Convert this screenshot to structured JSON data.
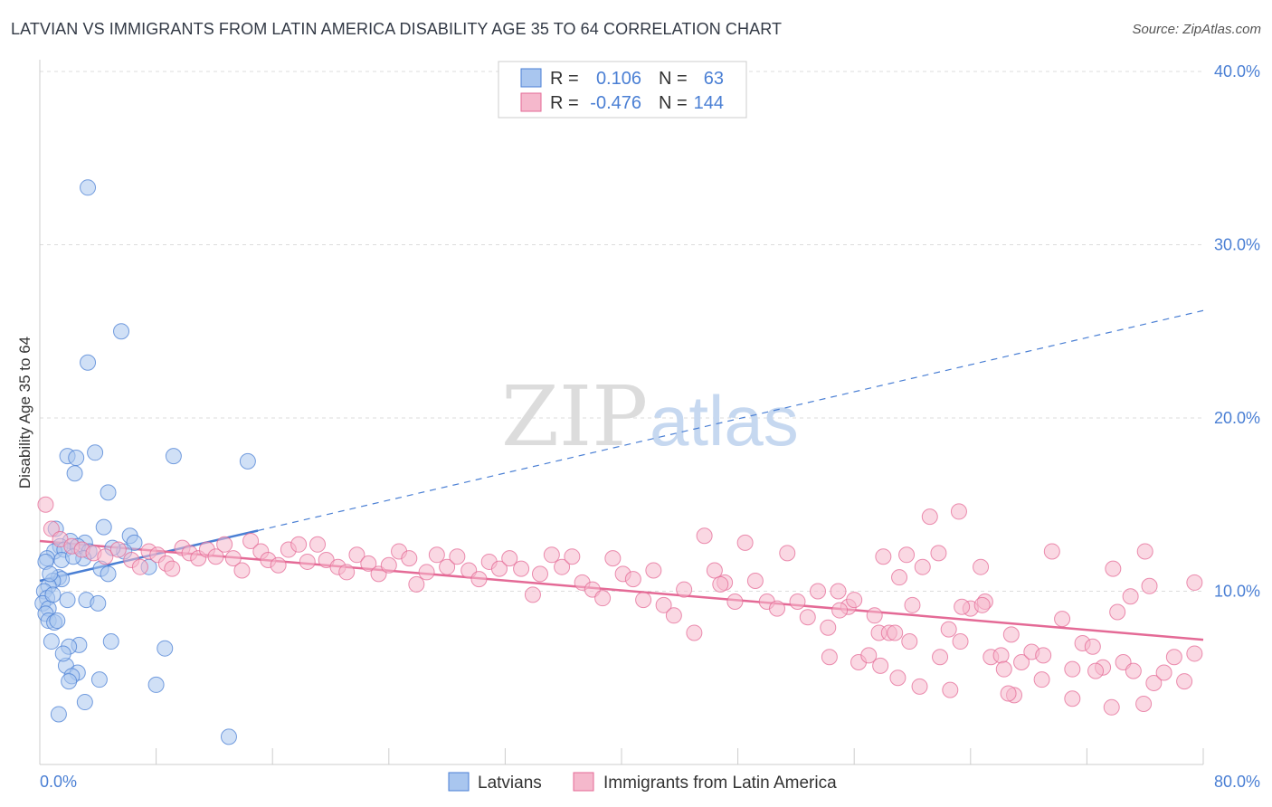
{
  "title": "LATVIAN VS IMMIGRANTS FROM LATIN AMERICA DISABILITY AGE 35 TO 64 CORRELATION CHART",
  "source": "Source: ZipAtlas.com",
  "watermark": {
    "zip": "ZIP",
    "atlas": "atlas"
  },
  "colors": {
    "blue": "#4a7fd4",
    "blue_fill": "#a9c6ef",
    "pink": "#e46a96",
    "pink_fill": "#f5b8cc",
    "grid": "#dddddd"
  },
  "stats": {
    "series1": {
      "r_label": "R =",
      "r_value": "0.106",
      "n_label": "N =",
      "n_value": "63"
    },
    "series2": {
      "r_label": "R =",
      "r_value": "-0.476",
      "n_label": "N =",
      "n_value": "144"
    }
  },
  "chart_data": {
    "type": "scatter",
    "title": "LATVIAN VS IMMIGRANTS FROM LATIN AMERICA DISABILITY AGE 35 TO 64 CORRELATION CHART",
    "xlabel": "",
    "ylabel": "Disability Age 35 to 64",
    "xlim": [
      0,
      80
    ],
    "ylim": [
      0,
      40
    ],
    "x_tick_labels": [
      "0.0%",
      "80.0%"
    ],
    "y_ticks": [
      10,
      20,
      30,
      40
    ],
    "y_tick_labels": [
      "10.0%",
      "20.0%",
      "30.0%",
      "40.0%"
    ],
    "grid": true,
    "legend_position": "bottom-center",
    "series": [
      {
        "name": "Latvians",
        "color": "#4a7fd4",
        "trend": {
          "x0": 0,
          "y0": 10.6,
          "x1": 15,
          "y1": 13.5,
          "dashed_to_x": 80,
          "dashed_to_y": 26.2
        },
        "points": [
          [
            3.3,
            33.3
          ],
          [
            5.6,
            25.0
          ],
          [
            3.3,
            23.2
          ],
          [
            1.9,
            17.8
          ],
          [
            2.5,
            17.7
          ],
          [
            3.8,
            18.0
          ],
          [
            9.2,
            17.8
          ],
          [
            14.3,
            17.5
          ],
          [
            2.4,
            16.8
          ],
          [
            4.7,
            15.7
          ],
          [
            1.1,
            13.6
          ],
          [
            4.4,
            13.7
          ],
          [
            6.2,
            13.2
          ],
          [
            2.1,
            12.9
          ],
          [
            3.1,
            12.8
          ],
          [
            6.5,
            12.8
          ],
          [
            1.4,
            12.6
          ],
          [
            1.0,
            12.3
          ],
          [
            1.7,
            12.4
          ],
          [
            2.6,
            12.6
          ],
          [
            3.4,
            12.3
          ],
          [
            5.8,
            12.3
          ],
          [
            0.5,
            11.9
          ],
          [
            0.4,
            11.7
          ],
          [
            1.5,
            11.8
          ],
          [
            3.0,
            11.9
          ],
          [
            4.2,
            11.3
          ],
          [
            4.7,
            11.0
          ],
          [
            7.5,
            11.4
          ],
          [
            1.3,
            10.8
          ],
          [
            1.5,
            10.7
          ],
          [
            0.9,
            10.6
          ],
          [
            0.6,
            10.3
          ],
          [
            0.3,
            10.0
          ],
          [
            0.5,
            9.6
          ],
          [
            1.9,
            9.5
          ],
          [
            3.2,
            9.5
          ],
          [
            4.0,
            9.3
          ],
          [
            0.2,
            9.3
          ],
          [
            0.6,
            9.0
          ],
          [
            0.4,
            8.7
          ],
          [
            0.6,
            8.3
          ],
          [
            1.0,
            8.2
          ],
          [
            1.2,
            8.3
          ],
          [
            0.8,
            7.1
          ],
          [
            4.9,
            7.1
          ],
          [
            2.7,
            6.9
          ],
          [
            2.0,
            6.8
          ],
          [
            8.6,
            6.7
          ],
          [
            1.8,
            5.7
          ],
          [
            2.6,
            5.3
          ],
          [
            2.2,
            5.1
          ],
          [
            2.0,
            4.8
          ],
          [
            4.1,
            4.9
          ],
          [
            8.0,
            4.6
          ],
          [
            3.1,
            3.6
          ],
          [
            1.3,
            2.9
          ],
          [
            13.0,
            1.6
          ],
          [
            1.6,
            6.4
          ],
          [
            0.7,
            11.0
          ],
          [
            5.0,
            12.5
          ],
          [
            2.3,
            12.0
          ],
          [
            0.9,
            9.8
          ]
        ]
      },
      {
        "name": "Immigrants from Latin America",
        "color": "#e46a96",
        "trend": {
          "x0": 0,
          "y0": 12.9,
          "x1": 80,
          "y1": 7.2
        },
        "points": [
          [
            0.4,
            15.0
          ],
          [
            0.8,
            13.6
          ],
          [
            1.4,
            13.0
          ],
          [
            2.2,
            12.6
          ],
          [
            2.9,
            12.4
          ],
          [
            3.7,
            12.2
          ],
          [
            4.5,
            12.0
          ],
          [
            5.4,
            12.4
          ],
          [
            6.3,
            11.8
          ],
          [
            6.9,
            11.4
          ],
          [
            7.5,
            12.3
          ],
          [
            8.1,
            12.1
          ],
          [
            8.7,
            11.6
          ],
          [
            9.1,
            11.3
          ],
          [
            9.8,
            12.5
          ],
          [
            10.3,
            12.2
          ],
          [
            10.9,
            11.9
          ],
          [
            11.5,
            12.4
          ],
          [
            12.1,
            12.0
          ],
          [
            12.7,
            12.7
          ],
          [
            13.3,
            11.9
          ],
          [
            13.9,
            11.2
          ],
          [
            14.5,
            12.9
          ],
          [
            15.2,
            12.3
          ],
          [
            15.7,
            11.8
          ],
          [
            16.4,
            11.5
          ],
          [
            17.1,
            12.4
          ],
          [
            17.8,
            12.7
          ],
          [
            18.4,
            11.7
          ],
          [
            19.1,
            12.7
          ],
          [
            19.7,
            11.8
          ],
          [
            20.5,
            11.4
          ],
          [
            21.1,
            11.1
          ],
          [
            21.8,
            12.1
          ],
          [
            22.6,
            11.6
          ],
          [
            23.3,
            11.0
          ],
          [
            24.0,
            11.5
          ],
          [
            24.7,
            12.3
          ],
          [
            25.4,
            11.9
          ],
          [
            25.9,
            10.4
          ],
          [
            26.6,
            11.1
          ],
          [
            27.3,
            12.1
          ],
          [
            28.0,
            11.4
          ],
          [
            28.7,
            12.0
          ],
          [
            29.5,
            11.2
          ],
          [
            30.2,
            10.7
          ],
          [
            30.9,
            11.7
          ],
          [
            31.6,
            11.3
          ],
          [
            32.3,
            11.9
          ],
          [
            33.1,
            11.3
          ],
          [
            33.9,
            9.8
          ],
          [
            34.4,
            11.0
          ],
          [
            35.2,
            12.1
          ],
          [
            35.9,
            11.4
          ],
          [
            36.6,
            12.0
          ],
          [
            37.3,
            10.5
          ],
          [
            38.0,
            10.1
          ],
          [
            38.7,
            9.6
          ],
          [
            39.4,
            11.9
          ],
          [
            40.1,
            11.0
          ],
          [
            40.8,
            10.7
          ],
          [
            41.5,
            9.5
          ],
          [
            42.2,
            11.2
          ],
          [
            42.9,
            9.2
          ],
          [
            43.6,
            8.6
          ],
          [
            44.3,
            10.1
          ],
          [
            45.0,
            7.6
          ],
          [
            45.7,
            13.2
          ],
          [
            46.4,
            11.2
          ],
          [
            47.1,
            10.5
          ],
          [
            47.8,
            9.4
          ],
          [
            48.5,
            12.8
          ],
          [
            49.2,
            10.6
          ],
          [
            50.0,
            9.4
          ],
          [
            50.7,
            9.0
          ],
          [
            51.4,
            12.2
          ],
          [
            52.1,
            9.4
          ],
          [
            52.8,
            8.5
          ],
          [
            53.5,
            10.0
          ],
          [
            54.2,
            7.9
          ],
          [
            54.9,
            10.0
          ],
          [
            55.6,
            9.1
          ],
          [
            56.3,
            5.9
          ],
          [
            57.0,
            6.3
          ],
          [
            57.7,
            7.6
          ],
          [
            58.4,
            7.6
          ],
          [
            59.1,
            10.8
          ],
          [
            59.8,
            7.1
          ],
          [
            60.5,
            4.5
          ],
          [
            61.2,
            14.3
          ],
          [
            61.9,
            6.2
          ],
          [
            62.6,
            4.3
          ],
          [
            63.3,
            7.1
          ],
          [
            64.0,
            9.0
          ],
          [
            64.7,
            11.4
          ],
          [
            65.4,
            6.2
          ],
          [
            66.1,
            6.3
          ],
          [
            66.8,
            7.5
          ],
          [
            67.5,
            5.9
          ],
          [
            68.2,
            6.5
          ],
          [
            68.9,
            4.9
          ],
          [
            69.6,
            12.3
          ],
          [
            70.3,
            8.4
          ],
          [
            71.0,
            5.5
          ],
          [
            71.7,
            7.0
          ],
          [
            72.4,
            6.8
          ],
          [
            73.1,
            5.6
          ],
          [
            73.8,
            11.3
          ],
          [
            74.5,
            5.9
          ],
          [
            75.2,
            5.4
          ],
          [
            75.9,
            3.5
          ],
          [
            76.6,
            4.7
          ],
          [
            77.3,
            5.3
          ],
          [
            78.0,
            6.2
          ],
          [
            78.7,
            4.8
          ],
          [
            79.4,
            6.4
          ],
          [
            63.4,
            9.1
          ],
          [
            65.0,
            9.4
          ],
          [
            56.0,
            9.5
          ],
          [
            57.4,
            8.6
          ],
          [
            58.0,
            12.0
          ],
          [
            59.0,
            5.0
          ],
          [
            60.7,
            11.4
          ],
          [
            66.3,
            5.5
          ],
          [
            67.0,
            4.0
          ],
          [
            69.0,
            6.3
          ],
          [
            71.0,
            3.8
          ],
          [
            72.6,
            5.4
          ],
          [
            73.7,
            3.3
          ],
          [
            55.0,
            8.9
          ],
          [
            54.3,
            6.2
          ],
          [
            61.8,
            12.2
          ],
          [
            63.2,
            14.6
          ],
          [
            64.8,
            9.2
          ],
          [
            66.6,
            4.1
          ],
          [
            62.5,
            7.8
          ],
          [
            60.0,
            9.2
          ],
          [
            58.8,
            7.6
          ],
          [
            57.8,
            5.7
          ],
          [
            59.6,
            12.1
          ],
          [
            76.0,
            12.3
          ],
          [
            46.8,
            10.4
          ],
          [
            79.4,
            10.5
          ],
          [
            76.3,
            10.3
          ],
          [
            75.0,
            9.7
          ],
          [
            74.1,
            8.8
          ]
        ]
      }
    ]
  },
  "legend": {
    "items": [
      "Latvians",
      "Immigrants from Latin America"
    ]
  }
}
